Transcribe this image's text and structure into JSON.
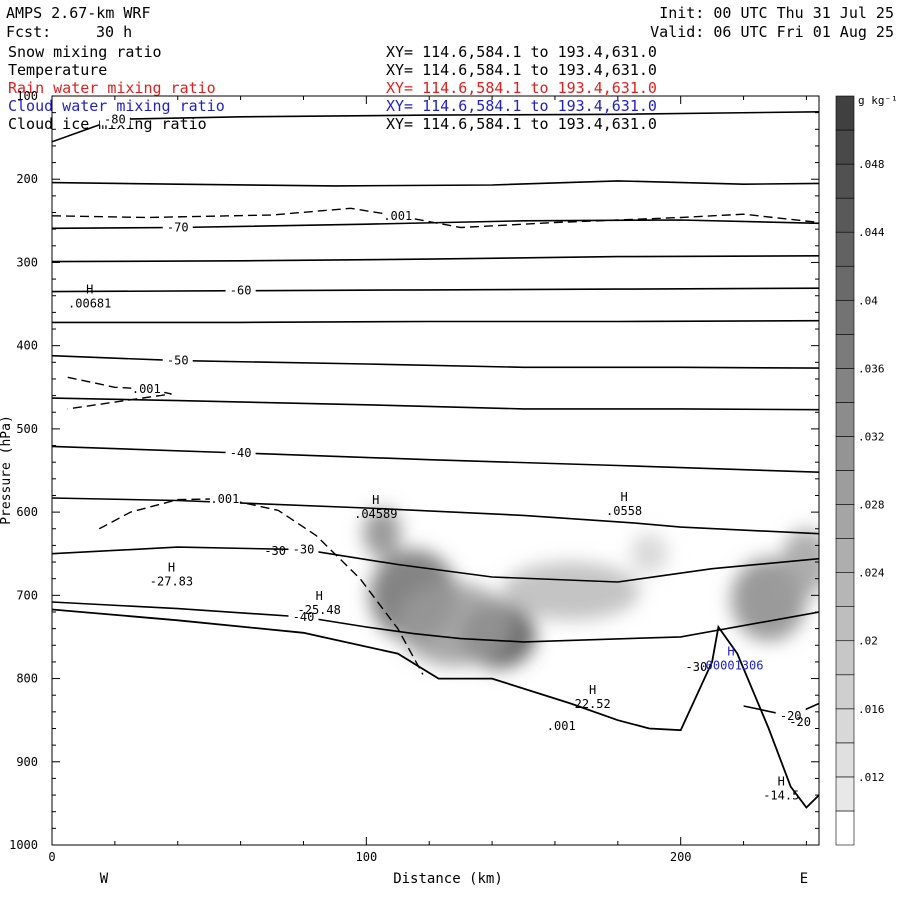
{
  "header": {
    "model": "AMPS 2.67-km WRF",
    "forecast_label": "Fcst:",
    "forecast_hours": "30 h",
    "init": "Init: 00 UTC Thu 31 Jul 25",
    "valid": "Valid: 06 UTC Fri 01 Aug 25"
  },
  "legend": [
    {
      "name": "Snow mixing ratio",
      "xy": "XY= 114.6,584.1 to 193.4,631.0",
      "color": "#000000"
    },
    {
      "name": "Temperature",
      "xy": "XY= 114.6,584.1 to 193.4,631.0",
      "color": "#000000"
    },
    {
      "name": "Rain water mixing ratio",
      "xy": "XY= 114.6,584.1 to 193.4,631.0",
      "color": "#e0201f"
    },
    {
      "name": "Cloud water mixing ratio",
      "xy": "XY= 114.6,584.1 to 193.4,631.0",
      "color": "#1f1fc8"
    },
    {
      "name": "Cloud ice mixing ratio",
      "xy": "XY= 114.6,584.1 to 193.4,631.0",
      "color": "#000000"
    }
  ],
  "chart_data": {
    "type": "cross-section contour",
    "xlabel": "Distance (km)",
    "ylabel": "Pressure (hPa)",
    "xlim": [
      0,
      244
    ],
    "ylim": [
      1000,
      100
    ],
    "x_ticks": [
      0,
      100,
      200
    ],
    "y_ticks": [
      100,
      200,
      300,
      400,
      500,
      600,
      700,
      800,
      900,
      1000
    ],
    "x_left_label": "W",
    "x_right_label": "E",
    "colorbar": {
      "unit": "g kg⁻¹",
      "ticks": [
        ".048",
        ".044",
        ".04",
        ".036",
        ".032",
        ".028",
        ".024",
        ".02",
        ".016",
        ".012"
      ],
      "tick_values": [
        0.048,
        0.044,
        0.04,
        0.036,
        0.032,
        0.028,
        0.024,
        0.02,
        0.016,
        0.012
      ],
      "range": [
        0.008,
        0.052
      ],
      "levels": 22
    },
    "temperature_contours": [
      {
        "label": "-80",
        "points": [
          [
            0,
            155
          ],
          [
            20,
            128
          ],
          [
            60,
            125
          ],
          [
            120,
            123
          ],
          [
            180,
            122
          ],
          [
            244,
            119
          ]
        ]
      },
      {
        "label": "",
        "points": [
          [
            0,
            204
          ],
          [
            40,
            206
          ],
          [
            90,
            208
          ],
          [
            140,
            207
          ],
          [
            180,
            202
          ],
          [
            220,
            206
          ],
          [
            244,
            205
          ]
        ]
      },
      {
        "label": "-70",
        "points": [
          [
            0,
            259
          ],
          [
            40,
            258
          ],
          [
            100,
            254
          ],
          [
            150,
            250
          ],
          [
            200,
            249
          ],
          [
            244,
            253
          ]
        ]
      },
      {
        "label": "",
        "points": [
          [
            0,
            299
          ],
          [
            60,
            298
          ],
          [
            120,
            296
          ],
          [
            180,
            293
          ],
          [
            244,
            292
          ]
        ]
      },
      {
        "label": "-60",
        "points": [
          [
            0,
            335
          ],
          [
            60,
            334
          ],
          [
            120,
            333
          ],
          [
            180,
            332
          ],
          [
            244,
            331
          ]
        ]
      },
      {
        "label": "",
        "points": [
          [
            0,
            372
          ],
          [
            60,
            372
          ],
          [
            120,
            371
          ],
          [
            180,
            371
          ],
          [
            244,
            370
          ]
        ]
      },
      {
        "label": "-50",
        "points": [
          [
            0,
            412
          ],
          [
            40,
            418
          ],
          [
            100,
            422
          ],
          [
            150,
            426
          ],
          [
            200,
            426
          ],
          [
            244,
            427
          ]
        ]
      },
      {
        "label": "",
        "points": [
          [
            0,
            463
          ],
          [
            40,
            466
          ],
          [
            100,
            471
          ],
          [
            150,
            476
          ],
          [
            200,
            476
          ],
          [
            244,
            477
          ]
        ]
      },
      {
        "label": "-40",
        "points": [
          [
            0,
            521
          ],
          [
            60,
            529
          ],
          [
            120,
            537
          ],
          [
            180,
            544
          ],
          [
            244,
            552
          ]
        ]
      },
      {
        "label": "",
        "points": [
          [
            0,
            583
          ],
          [
            40,
            586
          ],
          [
            100,
            595
          ],
          [
            150,
            604
          ],
          [
            185,
            613
          ],
          [
            200,
            618
          ],
          [
            244,
            626
          ]
        ]
      },
      {
        "label": "-30",
        "points": [
          [
            0,
            650
          ],
          [
            40,
            642
          ],
          [
            80,
            645
          ],
          [
            110,
            663
          ],
          [
            140,
            678
          ],
          [
            180,
            684
          ],
          [
            210,
            668
          ],
          [
            244,
            656
          ]
        ]
      },
      {
        "label": "-40",
        "points": [
          [
            0,
            708
          ],
          [
            40,
            716
          ],
          [
            80,
            726
          ],
          [
            100,
            738
          ],
          [
            115,
            746
          ],
          [
            130,
            752
          ],
          [
            150,
            756
          ],
          [
            200,
            750
          ],
          [
            244,
            720
          ]
        ]
      },
      {
        "label": "-20",
        "points": [
          [
            220,
            833
          ],
          [
            235,
            845
          ],
          [
            244,
            830
          ]
        ]
      }
    ],
    "snow_contours": [
      {
        "label": ".001",
        "points": [
          [
            0,
            244
          ],
          [
            30,
            246
          ],
          [
            70,
            243
          ],
          [
            95,
            235
          ],
          [
            110,
            244
          ],
          [
            130,
            258
          ],
          [
            160,
            252
          ],
          [
            180,
            249
          ],
          [
            200,
            246
          ],
          [
            220,
            242
          ],
          [
            244,
            252
          ]
        ]
      },
      {
        "label": ".001",
        "points": [
          [
            5,
            438
          ],
          [
            20,
            450
          ],
          [
            30,
            452
          ],
          [
            38,
            458
          ],
          [
            25,
            465
          ],
          [
            5,
            476
          ]
        ]
      },
      {
        "label": ".001",
        "points": [
          [
            15,
            620
          ],
          [
            25,
            600
          ],
          [
            40,
            585
          ],
          [
            55,
            584
          ],
          [
            72,
            598
          ],
          [
            84,
            628
          ],
          [
            98,
            680
          ],
          [
            110,
            740
          ],
          [
            118,
            795
          ]
        ]
      }
    ],
    "extrema": [
      {
        "symbol": "H",
        "value": ".00681",
        "x": 12,
        "p": 347,
        "color": "#000000"
      },
      {
        "symbol": "H",
        "value": ".04589",
        "x": 103,
        "p": 600,
        "color": "#000000"
      },
      {
        "symbol": "H",
        "value": ".0558",
        "x": 182,
        "p": 596,
        "color": "#000000"
      },
      {
        "symbol": "H",
        "value": "-27.83",
        "x": 38,
        "p": 681,
        "color": "#000000"
      },
      {
        "symbol": "H",
        "value": "-25.48",
        "x": 85,
        "p": 715,
        "color": "#000000"
      },
      {
        "symbol": "H",
        "value": "22.52",
        "x": 172,
        "p": 828,
        "color": "#000000"
      },
      {
        "symbol": "H",
        "value": ".00001306",
        "x": 216,
        "p": 782,
        "color": "#1f1fc8"
      },
      {
        "symbol": "H",
        "value": "-14.5",
        "x": 232,
        "p": 938,
        "color": "#000000"
      }
    ],
    "extra_labels": [
      {
        "text": "-30",
        "x": 71,
        "p": 647
      },
      {
        "text": ".001",
        "x": 162,
        "p": 857
      },
      {
        "text": "-30",
        "x": 205,
        "p": 786
      },
      {
        "text": "-20",
        "x": 238,
        "p": 852
      }
    ],
    "terrain": [
      [
        0,
        717
      ],
      [
        40,
        730
      ],
      [
        80,
        745
      ],
      [
        110,
        770
      ],
      [
        123,
        800
      ],
      [
        140,
        800
      ],
      [
        165,
        830
      ],
      [
        180,
        850
      ],
      [
        190,
        860
      ],
      [
        200,
        862
      ],
      [
        210,
        780
      ],
      [
        212,
        738
      ],
      [
        218,
        770
      ],
      [
        228,
        860
      ],
      [
        235,
        930
      ],
      [
        240,
        955
      ],
      [
        244,
        940
      ]
    ],
    "cloud_blobs": [
      {
        "x": 105,
        "p": 625,
        "rx": 6,
        "rp": 30,
        "v": 0.034
      },
      {
        "x": 115,
        "p": 700,
        "rx": 14,
        "rp": 55,
        "v": 0.04
      },
      {
        "x": 142,
        "p": 748,
        "rx": 12,
        "rp": 40,
        "v": 0.046
      },
      {
        "x": 128,
        "p": 735,
        "rx": 18,
        "rp": 50,
        "v": 0.03
      },
      {
        "x": 165,
        "p": 695,
        "rx": 22,
        "rp": 35,
        "v": 0.022
      },
      {
        "x": 190,
        "p": 650,
        "rx": 6,
        "rp": 25,
        "v": 0.016
      },
      {
        "x": 228,
        "p": 705,
        "rx": 12,
        "rp": 50,
        "v": 0.034
      },
      {
        "x": 240,
        "p": 660,
        "rx": 8,
        "rp": 40,
        "v": 0.028
      }
    ]
  }
}
